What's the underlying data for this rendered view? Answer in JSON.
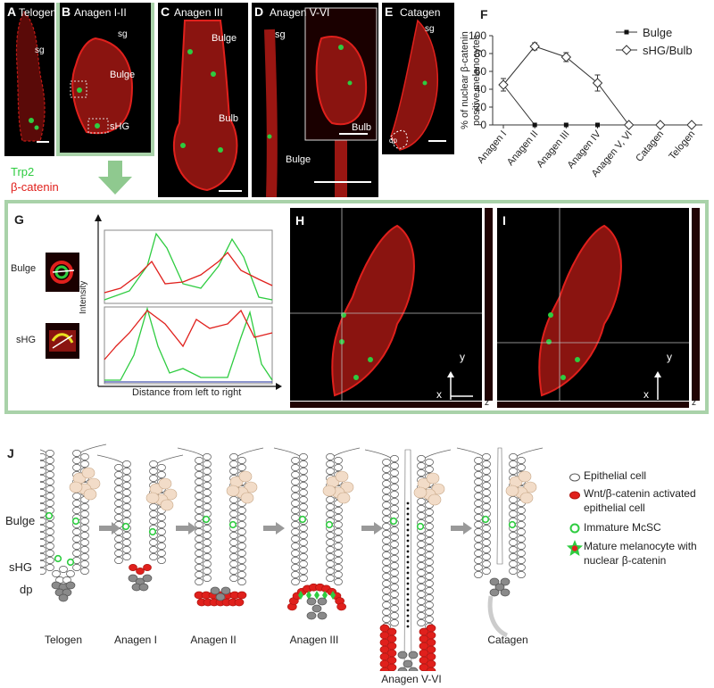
{
  "panels_top": {
    "A": {
      "label": "A",
      "title": "Telogen",
      "ann": [
        "sg"
      ]
    },
    "B": {
      "label": "B",
      "title": "Anagen I-II",
      "ann": [
        "sg",
        "Bulge",
        "sHG"
      ]
    },
    "C": {
      "label": "C",
      "title": "Anagen III",
      "ann": [
        "Bulge",
        "Bulb"
      ]
    },
    "D": {
      "label": "D",
      "title": "Anagen V-VI",
      "ann": [
        "sg",
        "Bulb",
        "Bulge"
      ]
    },
    "E": {
      "label": "E",
      "title": "Catagen",
      "ann": [
        "sg",
        "dp"
      ]
    }
  },
  "stain_legend": {
    "green": "Trp2",
    "red": "β-catenin"
  },
  "colors": {
    "green_stain": "#2ecc40",
    "red_stain": "#e0201c",
    "frame": "#a9d2a9",
    "arrow": "#8fc98f"
  },
  "panelF": {
    "label": "F"
  },
  "chart_data": {
    "type": "line",
    "categories": [
      "Anagen I",
      "Anagen II",
      "Anagen III",
      "Anagen IV",
      "Anagen V, VI",
      "Catagen",
      "Telogen"
    ],
    "ylabel": "% of nuclear β-catenin positive melanocytes",
    "ylim": [
      0,
      100
    ],
    "yticks": [
      0,
      20,
      40,
      60,
      80,
      100
    ],
    "series": [
      {
        "name": "Bulge",
        "values": [
          45,
          0,
          0,
          0,
          null,
          null,
          null
        ],
        "marker": "square"
      },
      {
        "name": "sHG/Bulb",
        "values": [
          45,
          88,
          76,
          47,
          0,
          0,
          0
        ],
        "marker": "diamond"
      }
    ]
  },
  "panelG": {
    "label": "G",
    "rows": [
      "Bulge",
      "sHG"
    ],
    "ylabel": "Intensity",
    "xlabel": "Distance from left to right"
  },
  "panelH": {
    "label": "H",
    "x": "x",
    "y": "y",
    "z": "z"
  },
  "panelI": {
    "label": "I",
    "x": "x",
    "y": "y",
    "z": "z"
  },
  "panelJ": {
    "label": "J",
    "left_labels": [
      "Bulge",
      "sHG",
      "dp"
    ],
    "stages": [
      "Telogen",
      "Anagen I",
      "Anagen II",
      "Anagen III",
      "Anagen V-VI",
      "Catagen"
    ],
    "legend": [
      "Epithelial cell",
      "Wnt/β-catenin activated epithelial cell",
      "Immature McSC",
      "Mature melanocyte with nuclear β-catenin"
    ]
  }
}
